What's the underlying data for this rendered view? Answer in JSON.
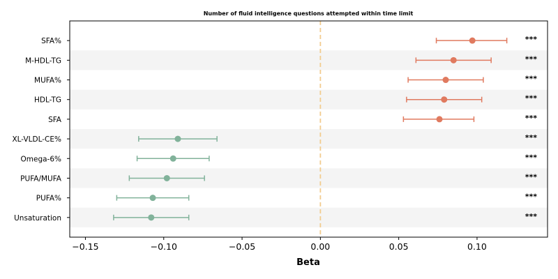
{
  "chart_data": {
    "type": "forest",
    "title": "Number of fluid intelligence questions attempted within time limit",
    "xlabel": "Beta",
    "xlim": [
      -0.16,
      0.145
    ],
    "x_ticks": [
      -0.15,
      -0.1,
      -0.05,
      0.0,
      0.05,
      0.1
    ],
    "x_tick_labels": [
      "−0.15",
      "−0.10",
      "−0.05",
      "0.00",
      "0.05",
      "0.10"
    ],
    "reference_line": 0.0,
    "grid": false,
    "colors": {
      "positive": "#e07a5f",
      "negative": "#81b29a",
      "reference": "#f2cc8f",
      "band": "#f4f4f4"
    },
    "rows": [
      {
        "label": "SFA%",
        "beta": 0.097,
        "ci_low": 0.074,
        "ci_high": 0.119,
        "sig": "***"
      },
      {
        "label": "M-HDL-TG",
        "beta": 0.085,
        "ci_low": 0.061,
        "ci_high": 0.109,
        "sig": "***"
      },
      {
        "label": "MUFA%",
        "beta": 0.08,
        "ci_low": 0.056,
        "ci_high": 0.104,
        "sig": "***"
      },
      {
        "label": "HDL-TG",
        "beta": 0.079,
        "ci_low": 0.055,
        "ci_high": 0.103,
        "sig": "***"
      },
      {
        "label": "SFA",
        "beta": 0.076,
        "ci_low": 0.053,
        "ci_high": 0.098,
        "sig": "***"
      },
      {
        "label": "XL-VLDL-CE%",
        "beta": -0.091,
        "ci_low": -0.116,
        "ci_high": -0.066,
        "sig": "***"
      },
      {
        "label": "Omega-6%",
        "beta": -0.094,
        "ci_low": -0.117,
        "ci_high": -0.071,
        "sig": "***"
      },
      {
        "label": "PUFA/MUFA",
        "beta": -0.098,
        "ci_low": -0.122,
        "ci_high": -0.074,
        "sig": "***"
      },
      {
        "label": "PUFA%",
        "beta": -0.107,
        "ci_low": -0.13,
        "ci_high": -0.084,
        "sig": "***"
      },
      {
        "label": "Unsaturation",
        "beta": -0.108,
        "ci_low": -0.132,
        "ci_high": -0.084,
        "sig": "***"
      }
    ]
  }
}
